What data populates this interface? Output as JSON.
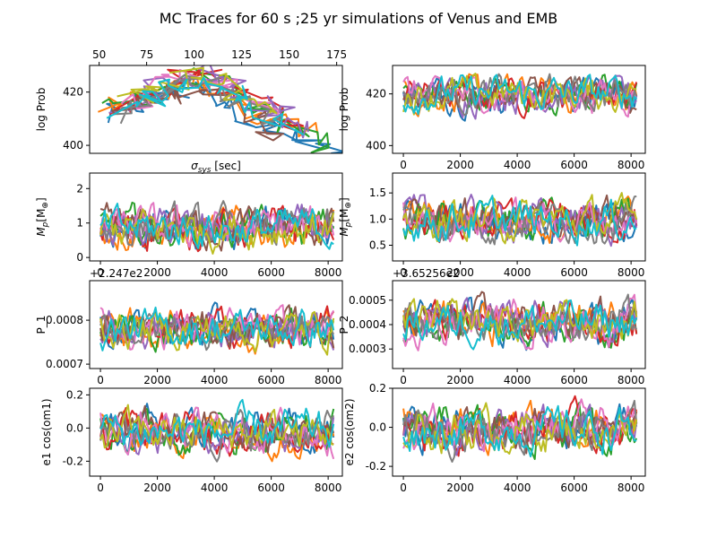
{
  "figure_title": "MC Traces for 60 s ;25 yr simulations of Venus and EMB",
  "chart_data": [
    {
      "id": "logprob-vs-sigma",
      "type": "line",
      "title": "",
      "xlabel": "σ_sys [sec]",
      "xlabel_main": "σ",
      "xlabel_sub": "sys",
      "xlabel_unit": " [sec]",
      "ylabel": "log Prob",
      "xlim": [
        45,
        178
      ],
      "ylim": [
        397,
        430
      ],
      "xticks": [
        50,
        75,
        100,
        125,
        150,
        175
      ],
      "yticks": [
        400,
        420
      ],
      "x_axis_position": "top",
      "offset_label": "",
      "trace_style": "sigma-scatter",
      "series": [
        {
          "color": "#1f77b4",
          "x": [
            52,
            68,
            85,
            98,
            110,
            126,
            142,
            160,
            172
          ],
          "y": [
            410,
            415,
            419,
            422,
            418,
            412,
            406,
            401,
            397
          ]
        },
        {
          "color": "#ff7f0e",
          "x": [
            55,
            70,
            88,
            100,
            115,
            130,
            150,
            165
          ],
          "y": [
            412,
            417,
            421,
            424,
            419,
            414,
            408,
            404
          ]
        },
        {
          "color": "#2ca02c",
          "x": [
            56,
            72,
            90,
            104,
            120,
            140,
            158,
            170
          ],
          "y": [
            414,
            419,
            423,
            426,
            420,
            411,
            404,
            400
          ]
        },
        {
          "color": "#d62728",
          "x": [
            60,
            78,
            92,
            106,
            122,
            138,
            156
          ],
          "y": [
            413,
            418,
            424,
            427,
            421,
            413,
            405
          ]
        },
        {
          "color": "#9467bd",
          "x": [
            62,
            76,
            94,
            108,
            124,
            136,
            150,
            160
          ],
          "y": [
            415,
            420,
            425,
            428,
            422,
            416,
            410,
            405
          ]
        },
        {
          "color": "#8c564b",
          "x": [
            58,
            74,
            90,
            102,
            118,
            132,
            146
          ],
          "y": [
            411,
            416,
            420,
            423,
            417,
            410,
            404
          ]
        },
        {
          "color": "#e377c2",
          "x": [
            64,
            80,
            96,
            112,
            128,
            144
          ],
          "y": [
            416,
            421,
            426,
            424,
            418,
            409
          ]
        },
        {
          "color": "#7f7f7f",
          "x": [
            57,
            73,
            86,
            99,
            114,
            128,
            142
          ],
          "y": [
            412,
            417,
            421,
            423,
            419,
            414,
            407
          ]
        },
        {
          "color": "#bcbd22",
          "x": [
            66,
            82,
            97,
            110,
            126,
            140
          ],
          "y": [
            417,
            422,
            427,
            425,
            419,
            412
          ]
        },
        {
          "color": "#17becf",
          "x": [
            59,
            75,
            91,
            105,
            121,
            137,
            153
          ],
          "y": [
            414,
            418,
            422,
            424,
            420,
            413,
            406
          ]
        }
      ]
    },
    {
      "id": "logprob-trace",
      "type": "line",
      "title": "",
      "xlabel": "",
      "ylabel": "log Prob",
      "xlim": [
        -380,
        8500
      ],
      "ylim": [
        397,
        431
      ],
      "xticks": [
        0,
        2000,
        4000,
        6000,
        8000
      ],
      "yticks": [
        400,
        420
      ],
      "x_axis_position": "bottom",
      "offset_label": "",
      "trace_style": "mcmc",
      "trace_center": 420,
      "trace_low": 401,
      "trace_high": 428,
      "trace_n": 8192
    },
    {
      "id": "mp1-trace",
      "type": "line",
      "title": "",
      "xlabel": "",
      "ylabel": "M_p[M_⊕]",
      "ylabel_main": "M",
      "ylabel_sub": "p",
      "ylabel_unit": "[M",
      "ylabel_unit_sub": "⊕",
      "ylabel_close": "]",
      "xlim": [
        -380,
        8500
      ],
      "ylim": [
        -0.1,
        2.45
      ],
      "xticks": [
        0,
        2000,
        4000,
        6000,
        8000
      ],
      "yticks": [
        0,
        1,
        2
      ],
      "x_axis_position": "bottom",
      "offset_label": "",
      "trace_style": "mcmc",
      "trace_center": 0.85,
      "trace_low": 0.02,
      "trace_high": 2.32,
      "trace_n": 8192
    },
    {
      "id": "mp2-trace",
      "type": "line",
      "title": "",
      "xlabel": "",
      "ylabel": "M_p[M_⊕]",
      "ylabel_main": "M",
      "ylabel_sub": "p",
      "ylabel_unit": "[M",
      "ylabel_unit_sub": "⊕",
      "ylabel_close": "]",
      "xlim": [
        -380,
        8500
      ],
      "ylim": [
        0.2,
        1.88
      ],
      "xticks": [
        0,
        2000,
        4000,
        6000,
        8000
      ],
      "yticks": [
        0.5,
        1.0,
        1.5
      ],
      "x_axis_position": "bottom",
      "offset_label": "",
      "trace_style": "mcmc",
      "trace_center": 0.98,
      "trace_low": 0.28,
      "trace_high": 1.8,
      "trace_n": 8192
    },
    {
      "id": "p1-trace",
      "type": "line",
      "title": "",
      "xlabel": "",
      "ylabel": "P_1",
      "xlim": [
        -380,
        8500
      ],
      "ylim": [
        0.00069,
        0.00089
      ],
      "xticks": [
        0,
        2000,
        4000,
        6000,
        8000
      ],
      "yticks": [
        0.0007,
        0.0008
      ],
      "x_axis_position": "bottom",
      "offset_label": "+2.247e2",
      "trace_style": "mcmc",
      "trace_center": 0.00078,
      "trace_low": 0.0007,
      "trace_high": 0.00087,
      "trace_n": 8192
    },
    {
      "id": "p2-trace",
      "type": "line",
      "title": "",
      "xlabel": "",
      "ylabel": "P_2",
      "xlim": [
        -380,
        8500
      ],
      "ylim": [
        0.00022,
        0.00058
      ],
      "xticks": [
        0,
        2000,
        4000,
        6000,
        8000
      ],
      "yticks": [
        0.0003,
        0.0004,
        0.0005
      ],
      "x_axis_position": "bottom",
      "offset_label": "+3.65256e2",
      "trace_style": "mcmc",
      "trace_center": 0.00041,
      "trace_low": 0.00024,
      "trace_high": 0.00057,
      "trace_n": 8192
    },
    {
      "id": "e1cos-trace",
      "type": "line",
      "title": "",
      "xlabel": "",
      "ylabel": "e1 cos(om1)",
      "xlim": [
        -380,
        8500
      ],
      "ylim": [
        -0.29,
        0.24
      ],
      "xticks": [
        0,
        2000,
        4000,
        6000,
        8000
      ],
      "yticks": [
        -0.2,
        0.0,
        0.2
      ],
      "x_axis_position": "bottom",
      "offset_label": "",
      "trace_style": "mcmc",
      "trace_center": -0.02,
      "trace_low": -0.27,
      "trace_high": 0.22,
      "trace_n": 8192
    },
    {
      "id": "e2cos-trace",
      "type": "line",
      "title": "",
      "xlabel": "",
      "ylabel": "e2 cos(om2)",
      "xlim": [
        -380,
        8500
      ],
      "ylim": [
        -0.25,
        0.2
      ],
      "xticks": [
        0,
        2000,
        4000,
        6000,
        8000
      ],
      "yticks": [
        -0.2,
        0.0,
        0.2
      ],
      "x_axis_position": "bottom",
      "offset_label": "",
      "trace_style": "mcmc",
      "trace_center": -0.01,
      "trace_low": -0.24,
      "trace_high": 0.19,
      "trace_n": 8192
    }
  ],
  "series_colors": [
    "#1f77b4",
    "#ff7f0e",
    "#2ca02c",
    "#d62728",
    "#9467bd",
    "#8c564b",
    "#e377c2",
    "#7f7f7f",
    "#bcbd22",
    "#17becf"
  ]
}
